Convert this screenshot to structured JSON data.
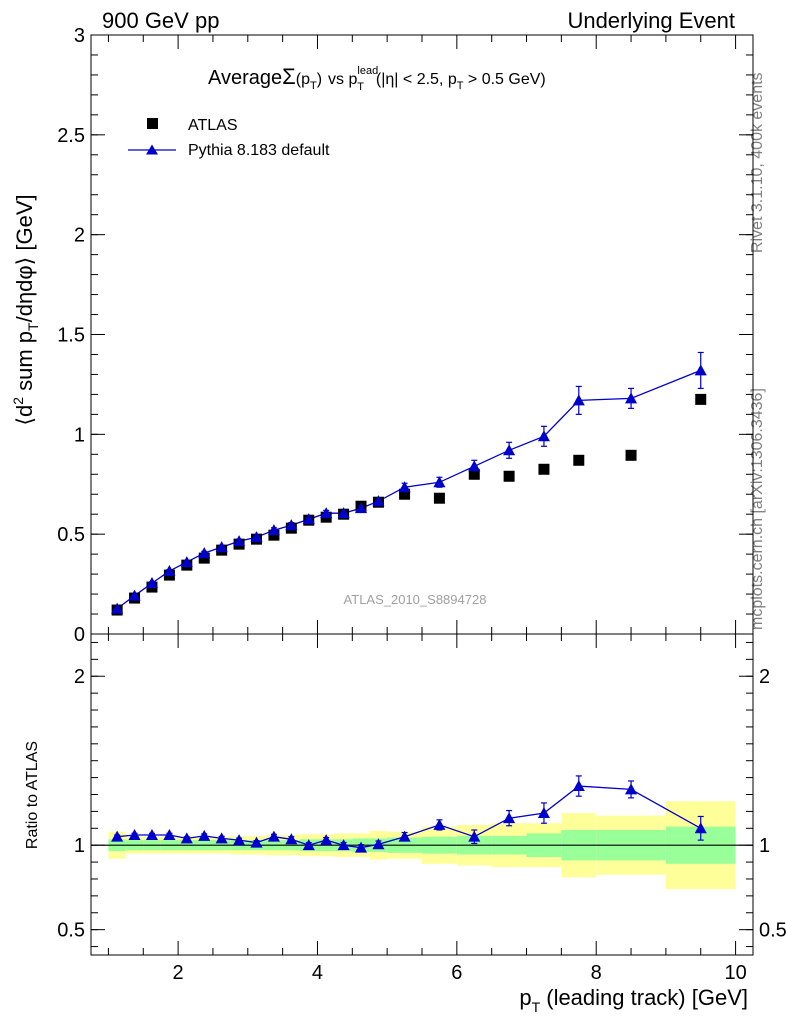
{
  "header": {
    "left": "900 GeV pp",
    "right": "Underlying Event"
  },
  "side_labels": {
    "rivet": "Rivet 3.1.10,  400k events",
    "mcplots": "mcplots.cern.ch [arXiv:1306.3436]"
  },
  "analysis_id": "ATLAS_2010_S8894728",
  "colors": {
    "mc": "#0000cc",
    "data": "#000000",
    "band_inner": "#99ff99",
    "band_outer": "#ffff99",
    "side_text": "#808080",
    "analysis_text": "#a0a0a0"
  },
  "chart_data": [
    {
      "type": "scatter",
      "panel": "main",
      "title_parts": {
        "average": "Average",
        "sigma": "Σ",
        "sigma_arg_open": "(p",
        "sigma_arg_sub": "T",
        "sigma_arg_close": ")",
        "vs": "vs p",
        "sup": "lead",
        "sub": "T",
        "cuts_1": "(|η| < 2.5, p",
        "cuts_sub": "T",
        "cuts_2": " > 0.5 GeV)"
      },
      "ylabel_parts": {
        "open": "⟨d",
        "sup": "2",
        "mid": " sum p",
        "sub": "T",
        "close": "/dηdφ⟩ [GeV]"
      },
      "xlim": [
        0.75,
        10.25
      ],
      "ylim": [
        0,
        3
      ],
      "yticks": [
        {
          "v": 0,
          "label": "0"
        },
        {
          "v": 0.5,
          "label": "0.5"
        },
        {
          "v": 1,
          "label": "1"
        },
        {
          "v": 1.5,
          "label": "1.5"
        },
        {
          "v": 2,
          "label": "2"
        },
        {
          "v": 2.5,
          "label": "2.5"
        },
        {
          "v": 3,
          "label": "3"
        }
      ],
      "legend_position": "top-left",
      "series": [
        {
          "name": "ATLAS",
          "marker": "square",
          "x": [
            1.125,
            1.375,
            1.625,
            1.875,
            2.125,
            2.375,
            2.625,
            2.875,
            3.125,
            3.375,
            3.625,
            3.875,
            4.125,
            4.375,
            4.625,
            4.875,
            5.25,
            5.75,
            6.25,
            6.75,
            7.25,
            7.75,
            8.5,
            9.5
          ],
          "y": [
            0.12,
            0.18,
            0.235,
            0.295,
            0.345,
            0.38,
            0.42,
            0.45,
            0.475,
            0.495,
            0.53,
            0.57,
            0.585,
            0.6,
            0.64,
            0.66,
            0.7,
            0.68,
            0.8,
            0.79,
            0.825,
            0.87,
            0.895,
            1.175
          ]
        },
        {
          "name": "Pythia 8.183 default",
          "marker": "triangle",
          "x": [
            1.125,
            1.375,
            1.625,
            1.875,
            2.125,
            2.375,
            2.625,
            2.875,
            3.125,
            3.375,
            3.625,
            3.875,
            4.125,
            4.375,
            4.625,
            4.875,
            5.25,
            5.75,
            6.25,
            6.75,
            7.25,
            7.75,
            8.5,
            9.5
          ],
          "y": [
            0.127,
            0.192,
            0.255,
            0.315,
            0.36,
            0.405,
            0.435,
            0.465,
            0.485,
            0.52,
            0.545,
            0.575,
            0.605,
            0.605,
            0.63,
            0.665,
            0.735,
            0.76,
            0.84,
            0.92,
            0.99,
            1.17,
            1.18,
            1.32
          ],
          "yerr": [
            0.004,
            0.005,
            0.006,
            0.007,
            0.008,
            0.009,
            0.01,
            0.01,
            0.011,
            0.012,
            0.013,
            0.013,
            0.014,
            0.015,
            0.015,
            0.016,
            0.02,
            0.025,
            0.03,
            0.04,
            0.05,
            0.07,
            0.05,
            0.09
          ]
        }
      ]
    },
    {
      "type": "scatter",
      "panel": "ratio",
      "ylabel": "Ratio to ATLAS",
      "xlabel_parts": {
        "p": "p",
        "sub": "T",
        "rest": " (leading track) [GeV]"
      },
      "xlim": [
        0.75,
        10.25
      ],
      "ylim": [
        0.35,
        2.25
      ],
      "xticks": [
        {
          "v": 2,
          "label": "2"
        },
        {
          "v": 4,
          "label": "4"
        },
        {
          "v": 6,
          "label": "6"
        },
        {
          "v": 8,
          "label": "8"
        },
        {
          "v": 10,
          "label": "10"
        }
      ],
      "yticks": [
        {
          "v": 0.5,
          "label": "0.5"
        },
        {
          "v": 1,
          "label": "1"
        },
        {
          "v": 2,
          "label": "2"
        }
      ],
      "bands": {
        "x_edges": [
          1.0,
          1.25,
          1.5,
          1.75,
          2.0,
          2.25,
          2.5,
          2.75,
          3.0,
          3.25,
          3.5,
          3.75,
          4.0,
          4.25,
          4.5,
          4.75,
          5.0,
          5.5,
          6.0,
          6.5,
          7.0,
          7.5,
          8.0,
          9.0,
          10.0
        ],
        "inner": [
          0.035,
          0.03,
          0.03,
          0.03,
          0.03,
          0.03,
          0.03,
          0.03,
          0.03,
          0.03,
          0.03,
          0.035,
          0.035,
          0.035,
          0.04,
          0.04,
          0.045,
          0.05,
          0.055,
          0.055,
          0.07,
          0.09,
          0.09,
          0.11
        ],
        "outer": [
          0.08,
          0.05,
          0.05,
          0.05,
          0.05,
          0.05,
          0.05,
          0.055,
          0.055,
          0.06,
          0.06,
          0.065,
          0.065,
          0.07,
          0.07,
          0.085,
          0.08,
          0.11,
          0.12,
          0.13,
          0.13,
          0.19,
          0.175,
          0.26
        ]
      },
      "series": [
        {
          "name": "Pythia 8.183 default",
          "marker": "triangle",
          "x": [
            1.125,
            1.375,
            1.625,
            1.875,
            2.125,
            2.375,
            2.625,
            2.875,
            3.125,
            3.375,
            3.625,
            3.875,
            4.125,
            4.375,
            4.625,
            4.875,
            5.25,
            5.75,
            6.25,
            6.75,
            7.25,
            7.75,
            8.5,
            9.5
          ],
          "y": [
            1.05,
            1.06,
            1.06,
            1.06,
            1.04,
            1.055,
            1.04,
            1.03,
            1.015,
            1.05,
            1.035,
            1.0,
            1.03,
            1.0,
            0.985,
            1.005,
            1.05,
            1.12,
            1.05,
            1.16,
            1.19,
            1.35,
            1.33,
            1.1
          ],
          "yerr": [
            0.01,
            0.01,
            0.01,
            0.01,
            0.01,
            0.012,
            0.012,
            0.012,
            0.012,
            0.014,
            0.015,
            0.015,
            0.015,
            0.016,
            0.018,
            0.02,
            0.025,
            0.03,
            0.04,
            0.045,
            0.06,
            0.06,
            0.05,
            0.07
          ]
        }
      ]
    }
  ]
}
